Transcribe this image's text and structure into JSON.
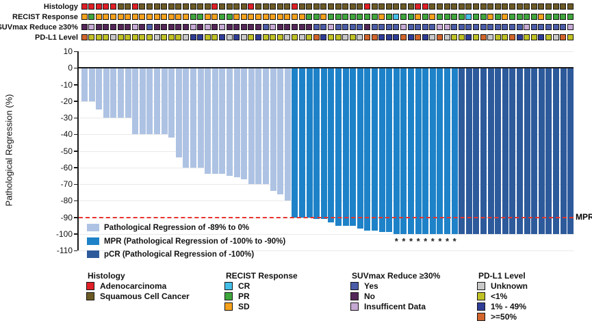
{
  "accent_colors": {
    "axis": "#1a1a1a",
    "gridline": "#e9e9e9",
    "reference_line_red": "#e8332a"
  },
  "annotation": {
    "palette": {
      "histology": {
        "A": "#e01f26",
        "S": "#6c5a25"
      },
      "recist": {
        "CR": "#45bee8",
        "PR": "#3fa63c",
        "SD": "#f5a11c"
      },
      "suvmax": {
        "Y": "#4a5ba8",
        "N": "#542658",
        "I": "#c5a9d4"
      },
      "pdl1": {
        "U": "#c8c8c8",
        "L": "#bfc124",
        "M": "#2f3d96",
        "H": "#d2652b"
      }
    },
    "rows": [
      {
        "key": "histology",
        "label": "Histology",
        "cells": [
          "A",
          "A",
          "A",
          "A",
          "A",
          "S",
          "S",
          "A",
          "S",
          "S",
          "S",
          "S",
          "S",
          "S",
          "S",
          "S",
          "S",
          "S",
          "A",
          "S",
          "S",
          "S",
          "S",
          "A",
          "S",
          "S",
          "S",
          "S",
          "S",
          "A",
          "S",
          "S",
          "S",
          "S",
          "S",
          "S",
          "S",
          "S",
          "S",
          "A",
          "S",
          "S",
          "S",
          "S",
          "S",
          "S",
          "A",
          "A",
          "S",
          "S",
          "S",
          "S",
          "S",
          "S",
          "S",
          "S",
          "S",
          "S",
          "S",
          "S",
          "S",
          "S",
          "S",
          "S",
          "S",
          "S",
          "S",
          "S"
        ]
      },
      {
        "key": "recist",
        "label": "RECIST Response",
        "cells": [
          "SD",
          "PR",
          "SD",
          "SD",
          "SD",
          "SD",
          "SD",
          "SD",
          "SD",
          "SD",
          "SD",
          "SD",
          "SD",
          "SD",
          "SD",
          "PR",
          "PR",
          "SD",
          "SD",
          "PR",
          "PR",
          "SD",
          "SD",
          "SD",
          "SD",
          "SD",
          "SD",
          "SD",
          "SD",
          "SD",
          "SD",
          "PR",
          "PR",
          "SD",
          "PR",
          "PR",
          "PR",
          "PR",
          "PR",
          "PR",
          "PR",
          "SD",
          "PR",
          "CR",
          "PR",
          "PR",
          "SD",
          "PR",
          "SD",
          "PR",
          "PR",
          "PR",
          "PR",
          "CR",
          "PR",
          "PR",
          "SD",
          "PR",
          "SD",
          "PR",
          "PR",
          "PR",
          "PR",
          "SD",
          "PR",
          "PR",
          "PR",
          "PR"
        ]
      },
      {
        "key": "suvmax",
        "label": "SUVmax Reduce ≥30%",
        "cells": [
          "N",
          "I",
          "N",
          "N",
          "N",
          "N",
          "N",
          "I",
          "N",
          "Y",
          "N",
          "N",
          "N",
          "N",
          "N",
          "I",
          "N",
          "I",
          "N",
          "I",
          "N",
          "N",
          "N",
          "N",
          "N",
          "Y",
          "I",
          "N",
          "N",
          "N",
          "N",
          "N",
          "Y",
          "Y",
          "I",
          "Y",
          "Y",
          "Y",
          "Y",
          "N",
          "Y",
          "Y",
          "Y",
          "Y",
          "I",
          "Y",
          "Y",
          "Y",
          "Y",
          "I",
          "I",
          "Y",
          "Y",
          "Y",
          "Y",
          "Y",
          "Y",
          "Y",
          "Y",
          "Y",
          "Y",
          "I",
          "Y",
          "Y",
          "Y",
          "Y",
          "Y",
          "I"
        ]
      },
      {
        "key": "pdl1",
        "label": "PD-L1 Level",
        "cells": [
          "H",
          "L",
          "L",
          "L",
          "U",
          "L",
          "L",
          "L",
          "L",
          "L",
          "U",
          "L",
          "L",
          "L",
          "U",
          "M",
          "M",
          "L",
          "L",
          "M",
          "U",
          "M",
          "U",
          "L",
          "M",
          "L",
          "L",
          "L",
          "U",
          "L",
          "U",
          "L",
          "H",
          "M",
          "L",
          "L",
          "U",
          "L",
          "U",
          "H",
          "H",
          "M",
          "M",
          "M",
          "H",
          "M",
          "H",
          "M",
          "U",
          "H",
          "U",
          "L",
          "L",
          "M",
          "L",
          "H",
          "U",
          "L",
          "L",
          "H",
          "M",
          "L",
          "L",
          "M",
          "L",
          "U",
          "H",
          "L"
        ]
      }
    ]
  },
  "chart_data": {
    "type": "bar",
    "title": "",
    "xlabel": "",
    "ylabel": "Pathological Regression (%)",
    "ylim": [
      -110,
      10
    ],
    "yticks": [
      10,
      0,
      -10,
      -20,
      -30,
      -40,
      -50,
      -60,
      -70,
      -80,
      -90,
      -100,
      -110
    ],
    "grid": true,
    "n_bars": 68,
    "bar_categories_key": {
      "R": "regression_-89_to_0",
      "M": "MPR",
      "P": "pCR"
    },
    "bar_colors": {
      "R": "#aec3e3",
      "M": "#1e82c8",
      "P": "#2d5a9b"
    },
    "values": [
      -20,
      -20,
      -25,
      -30,
      -30,
      -30,
      -30,
      -40,
      -40,
      -40,
      -40,
      -40,
      -42,
      -54,
      -60,
      -60,
      -60,
      -64,
      -64,
      -64,
      -65,
      -66,
      -67,
      -70,
      -70,
      -70,
      -74,
      -76,
      -80,
      -90,
      -90,
      -90,
      -91,
      -91,
      -93,
      -95,
      -95,
      -95,
      -97,
      -98,
      -98,
      -99,
      -99,
      -100,
      -100,
      -100,
      -100,
      -100,
      -100,
      -100,
      -100,
      -100,
      -100,
      -100,
      -100,
      -100,
      -100,
      -100,
      -100,
      -100,
      -100,
      -100,
      -100,
      -100,
      -100,
      -100,
      -100,
      -100
    ],
    "categories": [
      "R",
      "R",
      "R",
      "R",
      "R",
      "R",
      "R",
      "R",
      "R",
      "R",
      "R",
      "R",
      "R",
      "R",
      "R",
      "R",
      "R",
      "R",
      "R",
      "R",
      "R",
      "R",
      "R",
      "R",
      "R",
      "R",
      "R",
      "R",
      "R",
      "M",
      "M",
      "M",
      "M",
      "M",
      "M",
      "M",
      "M",
      "M",
      "M",
      "M",
      "M",
      "M",
      "M",
      "M",
      "M",
      "M",
      "M",
      "M",
      "M",
      "M",
      "M",
      "M",
      "P",
      "P",
      "P",
      "P",
      "P",
      "P",
      "P",
      "P",
      "P",
      "P",
      "P",
      "P",
      "P",
      "P",
      "P",
      "P"
    ],
    "asterisk_indices": [
      43,
      44,
      45,
      46,
      47,
      48,
      49,
      50,
      51
    ],
    "asterisk_symbol": "*",
    "reference_line": {
      "value": -90,
      "label": "MPR",
      "color": "#e8332a",
      "style": "dashed"
    },
    "legend_position": "inside-bottom-left",
    "legend": [
      {
        "key": "R",
        "label": "Pathological Regression of -89% to 0%",
        "color": "#aec3e3"
      },
      {
        "key": "M",
        "label": "MPR (Pathological Regression of -100% to -90%)",
        "color": "#1e82c8"
      },
      {
        "key": "P",
        "label": "pCR (Pathological Regression of -100%)",
        "color": "#2d5a9b"
      }
    ]
  },
  "bottom_legend": {
    "groups": [
      {
        "title": "Histology",
        "items": [
          {
            "label": "Adenocarcinoma",
            "color": "#e01f26"
          },
          {
            "label": "Squamous Cell Cancer",
            "color": "#6c5a25"
          }
        ]
      },
      {
        "title": "RECIST Response",
        "items": [
          {
            "label": "CR",
            "color": "#45bee8"
          },
          {
            "label": "PR",
            "color": "#3fa63c"
          },
          {
            "label": "SD",
            "color": "#f5a11c"
          }
        ]
      },
      {
        "title": "SUVmax Reduce ≥30%",
        "items": [
          {
            "label": "Yes",
            "color": "#4a5ba8"
          },
          {
            "label": "No",
            "color": "#542658"
          },
          {
            "label": "Insufficent Data",
            "color": "#c5a9d4"
          }
        ]
      },
      {
        "title": "PD-L1 Level",
        "items": [
          {
            "label": "Unknown",
            "color": "#c8c8c8"
          },
          {
            "label": "<1%",
            "color": "#bfc124"
          },
          {
            "label": "1% - 49%",
            "color": "#2f3d96"
          },
          {
            "label": ">=50%",
            "color": "#d2652b"
          }
        ]
      }
    ]
  }
}
